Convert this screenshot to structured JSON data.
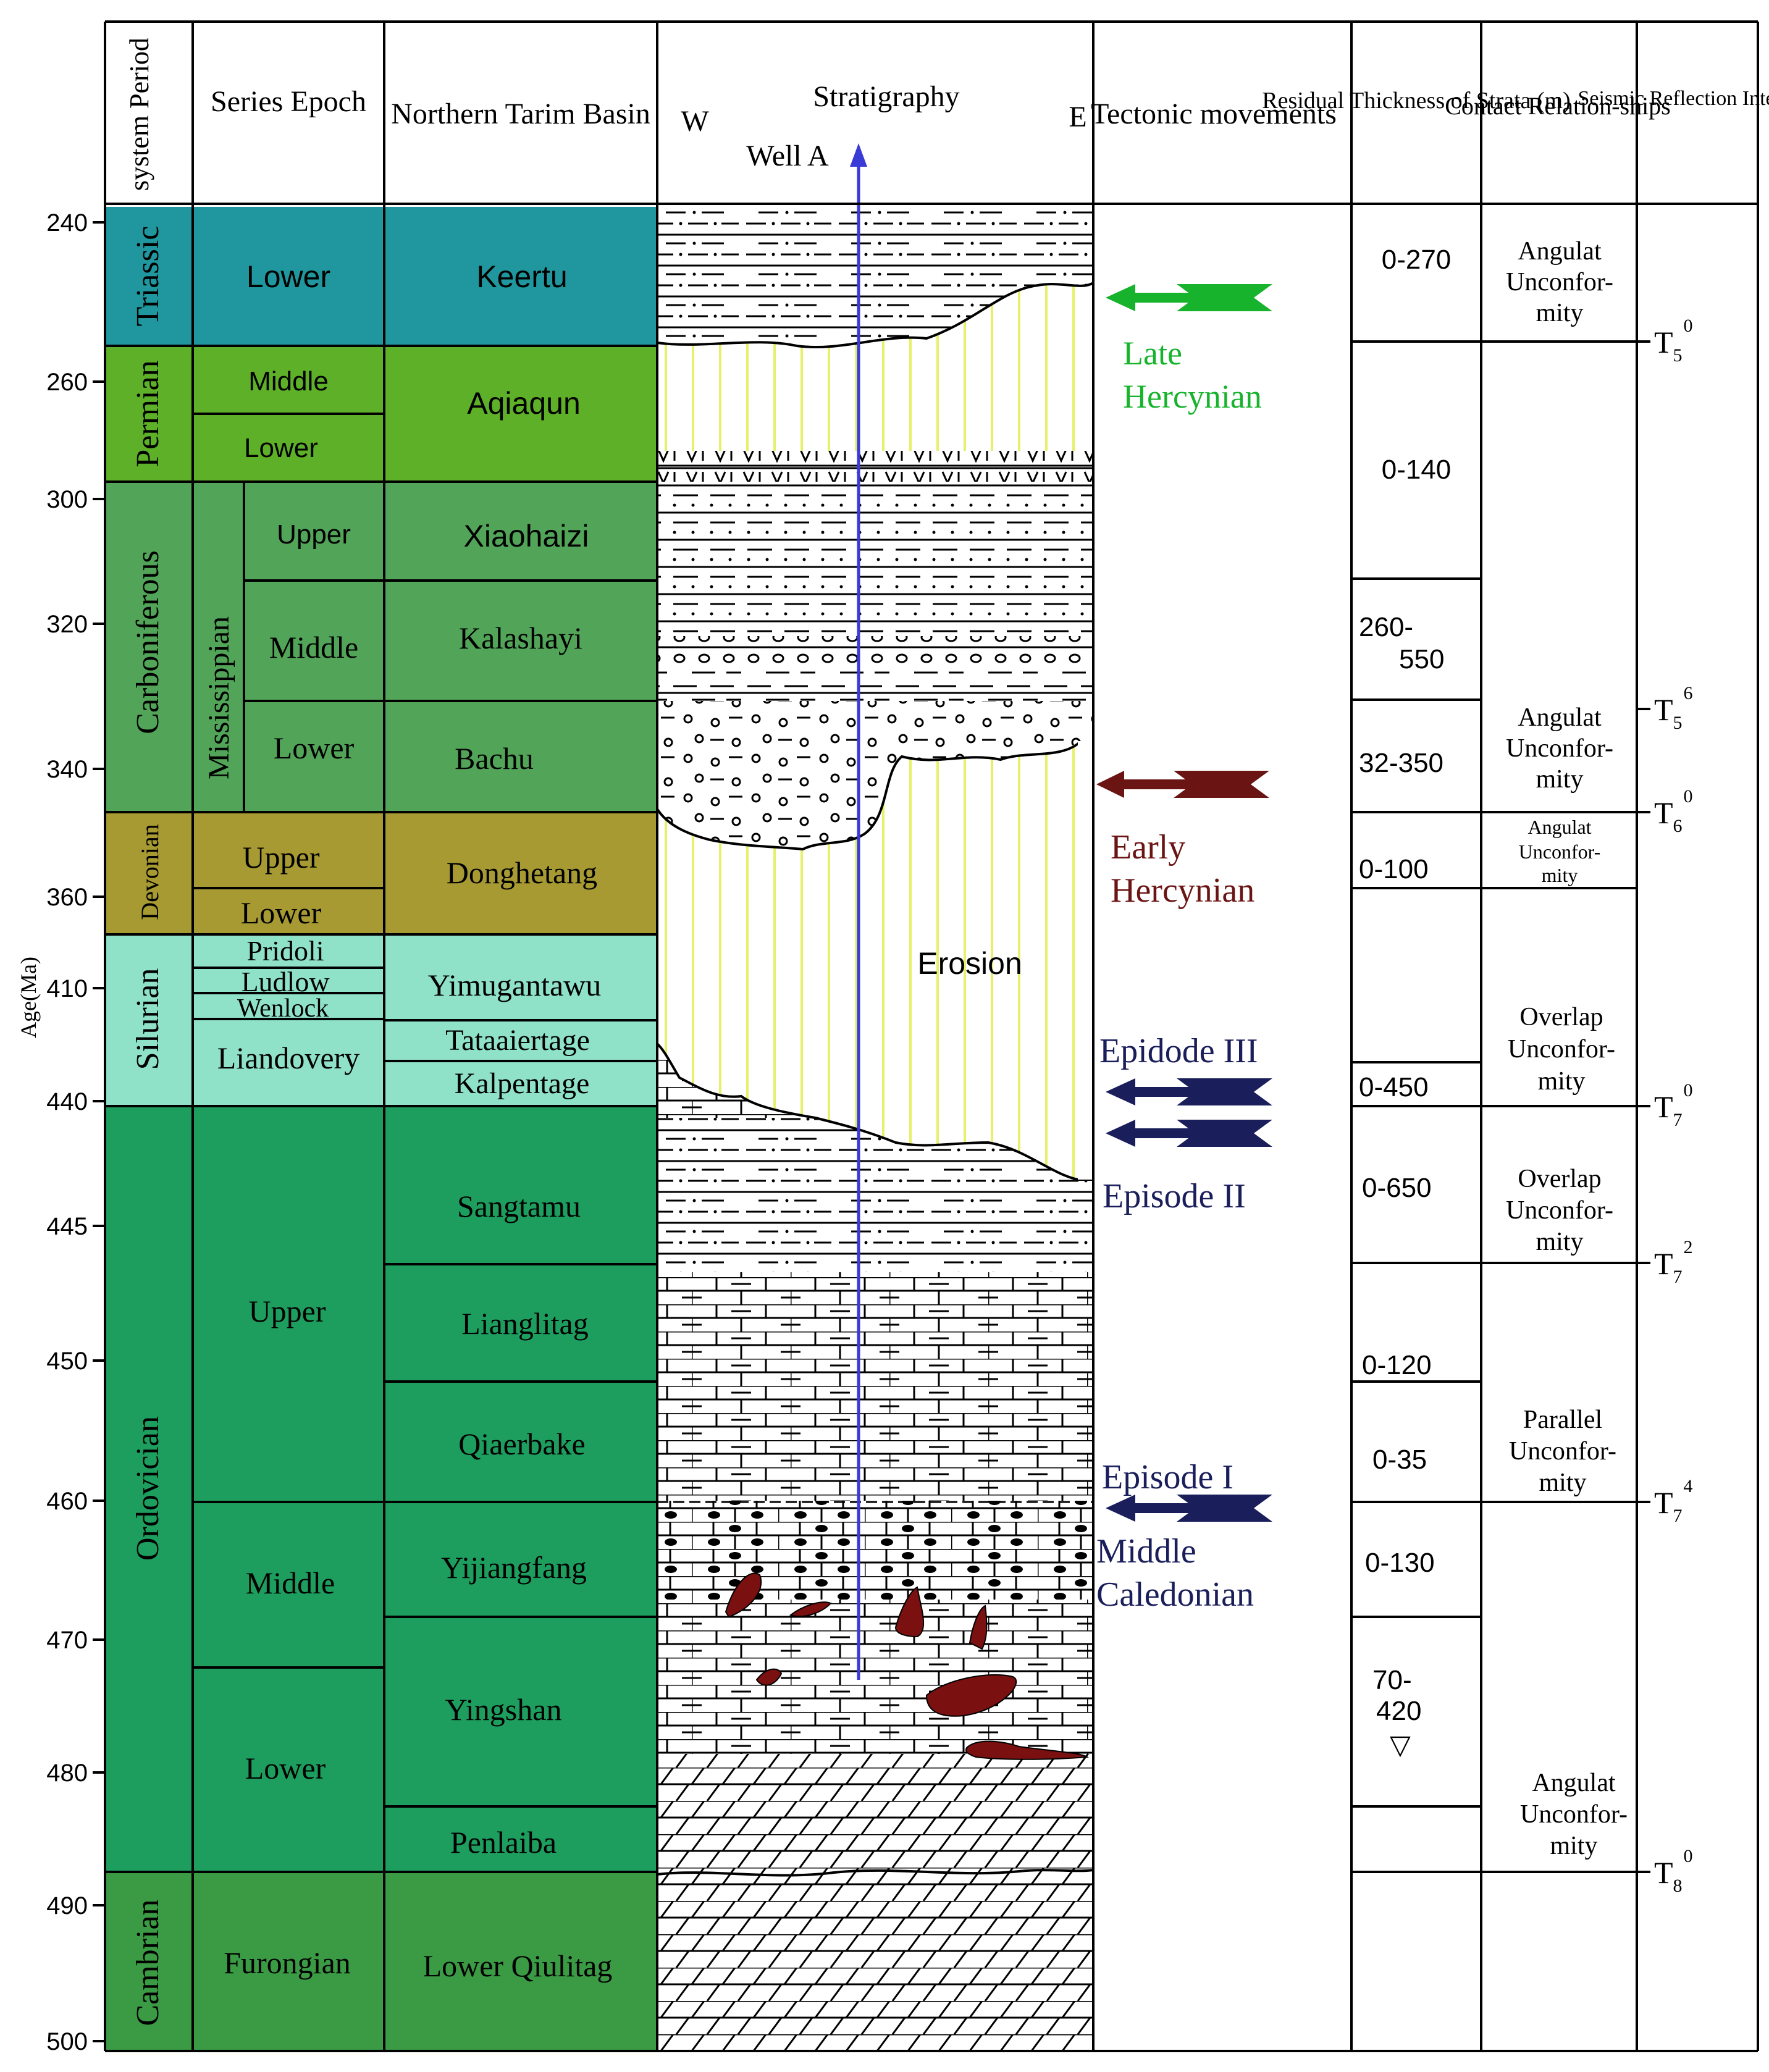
{
  "header": {
    "period": "system Period",
    "epoch": "Series Epoch",
    "basin": "Northern Tarim Basin",
    "strat_title": "Stratigraphy",
    "west": "W",
    "east": "E",
    "well": "Well A",
    "tectonic": "Tectonic movements",
    "thickness": "Residual Thickness of Strata (m)",
    "contact": "Contact Relation-ships",
    "seismic": "Seismic Reflection Interface"
  },
  "age_axis": {
    "label": "Age(Ma)",
    "ticks": [
      "240",
      "260",
      "300",
      "320",
      "340",
      "360",
      "410",
      "440",
      "445",
      "450",
      "460",
      "470",
      "480",
      "490",
      "500"
    ]
  },
  "colors": {
    "triassic": "#20979e",
    "permian": "#5db027",
    "carboniferous": "#52a558",
    "devonian": "#a79a33",
    "silurian": "#8fe2c8",
    "ordovician": "#1e9e5e",
    "cambrian": "#3b9a44",
    "erosion_line": "#e6f06a",
    "well_line": "#3a3ad6",
    "late_hercynian": "#17b32c",
    "early_hercynian": "#6b1414",
    "caledonian": "#1a1e5a",
    "fragment": "#7a1010"
  },
  "periods": [
    "Triassic",
    "Permian",
    "Carboniferous",
    "Devonian",
    "Silurian",
    "Ordovician",
    "Cambrian"
  ],
  "epochs": {
    "triassic_lower": "Lower",
    "permian_middle": "Middle",
    "permian_lower": "Lower",
    "mississippian": "Mississippian",
    "carb_upper": "Upper",
    "carb_middle": "Middle",
    "carb_lower": "Lower",
    "dev_upper": "Upper",
    "dev_lower": "Lower",
    "sil_pridoli": "Pridoli",
    "sil_ludlow": "Ludlow",
    "sil_wenlock": "Wenlock",
    "sil_llandovery": "Liandovery",
    "ord_upper": "Upper",
    "ord_middle": "Middle",
    "ord_lower": "Lower",
    "cam_furongian": "Furongian"
  },
  "formations": [
    "Keertu",
    "Aqiaqun",
    "Xiaohaizi",
    "Kalashayi",
    "Bachu",
    "Donghetang",
    "Yimugantawu",
    "Tataaiertage",
    "Kalpentage",
    "Sangtamu",
    "Lianglitag",
    "Qiaerbake",
    "Yijiangfang",
    "Yingshan",
    "Penlaiba",
    "Lower Qiulitag"
  ],
  "strat_labels": {
    "erosion": "Erosion"
  },
  "tectonic": {
    "late_hercynian_1": "Late",
    "late_hercynian_2": "Hercynian",
    "early_hercynian_1": "Early",
    "early_hercynian_2": "Hercynian",
    "episode3": "Epidode III",
    "episode2": "Episode II",
    "episode1": "Episode  I",
    "caledonian_1": "Middle",
    "caledonian_2": "Caledonian"
  },
  "thickness": [
    "0-270",
    "0-140",
    "260-",
    "550",
    "32-350",
    "0-100",
    "0-450",
    "0-650",
    "0-120",
    "0-35",
    "0-130",
    "70-",
    "420",
    "▽"
  ],
  "contacts": {
    "c1": [
      "Angulat",
      "Unconfor-",
      "mity"
    ],
    "c2": [
      "Angulat",
      "Unconfor-",
      "mity"
    ],
    "c3": [
      "Angulat",
      "Unconfor-",
      "mity"
    ],
    "c4": [
      "Overlap",
      "Unconfor-",
      "mity"
    ],
    "c5": [
      "Overlap",
      "Unconfor-",
      "mity"
    ],
    "c6": [
      "Parallel",
      "Unconfor-",
      "mity"
    ],
    "c7": [
      "Angulat",
      "Unconfor-",
      "mity"
    ]
  },
  "seismic": [
    {
      "base": "T",
      "sub": "5",
      "sup": "0"
    },
    {
      "base": "T",
      "sub": "5",
      "sup": "6"
    },
    {
      "base": "T",
      "sub": "6",
      "sup": "0"
    },
    {
      "base": "T",
      "sub": "7",
      "sup": "0"
    },
    {
      "base": "T",
      "sub": "7",
      "sup": "2"
    },
    {
      "base": "T",
      "sub": "7",
      "sup": "4"
    },
    {
      "base": "T",
      "sub": "8",
      "sup": "0"
    }
  ]
}
